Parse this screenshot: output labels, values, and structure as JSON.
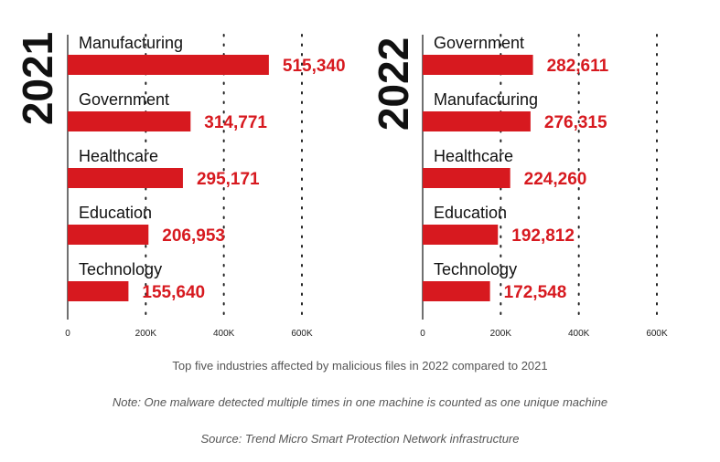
{
  "chart_data": [
    {
      "type": "bar",
      "orientation": "horizontal",
      "year_label": "2021",
      "categories": [
        "Manufacturing",
        "Government",
        "Healthcare",
        "Education",
        "Technology"
      ],
      "values": [
        515340,
        314771,
        295171,
        206953,
        155640
      ],
      "value_labels": [
        "515,340",
        "314,771",
        "295,171",
        "206,953",
        "155,640"
      ],
      "xlim": [
        0,
        600000
      ],
      "xticks": [
        0,
        200000,
        400000,
        600000
      ],
      "xtick_labels": [
        "0",
        "200K",
        "400K",
        "600K"
      ],
      "grid": "dotted vertical",
      "bar_color": "#d7191f"
    },
    {
      "type": "bar",
      "orientation": "horizontal",
      "year_label": "2022",
      "categories": [
        "Government",
        "Manufacturing",
        "Healthcare",
        "Education",
        "Technology"
      ],
      "values": [
        282611,
        276315,
        224260,
        192812,
        172548
      ],
      "value_labels": [
        "282,611",
        "276,315",
        "224,260",
        "192,812",
        "172,548"
      ],
      "xlim": [
        0,
        600000
      ],
      "xticks": [
        0,
        200000,
        400000,
        600000
      ],
      "xtick_labels": [
        "0",
        "200K",
        "400K",
        "600K"
      ],
      "grid": "dotted vertical",
      "bar_color": "#d7191f"
    }
  ],
  "captions": {
    "main": "Top five industries affected by malicious files in 2022 compared to 2021",
    "note": "Note: One malware detected multiple times in one machine is counted as one unique machine",
    "source": "Source: Trend Micro Smart Protection Network infrastructure"
  },
  "colors": {
    "bar": "#d7191f",
    "value_text": "#d7191f",
    "text": "#111111",
    "caption": "#555555"
  }
}
